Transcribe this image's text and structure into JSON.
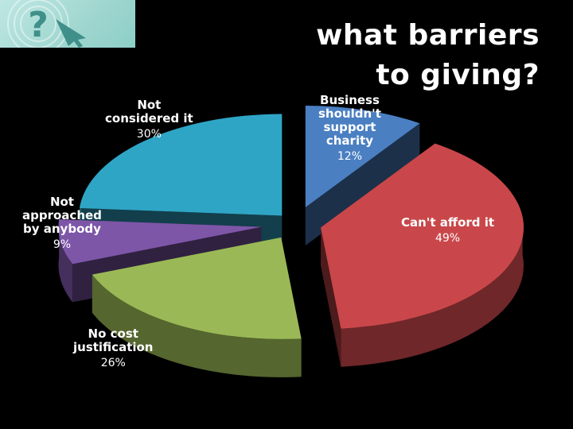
{
  "title": {
    "line1": "what barriers",
    "line2": "to giving?"
  },
  "logo": {
    "icon": "question-mark-arrow-icon"
  },
  "chart_data": {
    "type": "pie",
    "title": "what barriers to giving?",
    "unit": "%",
    "slices": [
      {
        "label": "Business shouldn't support charity",
        "value": 12,
        "display": "12%",
        "color": "#4a7fc2"
      },
      {
        "label": "Can't afford it",
        "value": 49,
        "display": "49%",
        "color": "#c9474a"
      },
      {
        "label": "No cost justification",
        "value": 26,
        "display": "26%",
        "color": "#9ab956"
      },
      {
        "label": "Not approached by anybody",
        "value": 9,
        "display": "9%",
        "color": "#7d56a8"
      },
      {
        "label": "Not considered it",
        "value": 30,
        "display": "30%",
        "color": "#2fa5c6"
      }
    ],
    "legend": "none",
    "three_d": true,
    "exploded": true
  },
  "labels": {
    "business": {
      "line1": "Business",
      "line2": "shouldn't",
      "line3": "support",
      "line4": "charity"
    },
    "afford": {
      "line1": "Can't afford it"
    },
    "nocost": {
      "line1": "No cost",
      "line2": "justification"
    },
    "approached": {
      "line1": "Not",
      "line2": "approached",
      "line3": "by anybody"
    },
    "considered": {
      "line1": "Not",
      "line2": "considered it"
    }
  }
}
